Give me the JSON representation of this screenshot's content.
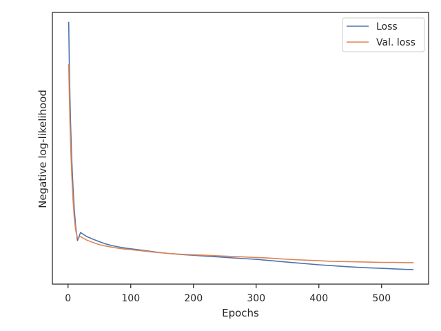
{
  "chart_data": {
    "type": "line",
    "xlabel": "Epochs",
    "ylabel": "Negative log-likelihood",
    "xlim": [
      -25,
      575
    ],
    "ylim": [
      0,
      1
    ],
    "x_ticks": [
      0,
      100,
      200,
      300,
      400,
      500
    ],
    "y_ticks_shown": false,
    "grid": false,
    "legend_position": "top-right",
    "series": [
      {
        "name": "Loss",
        "color": "#4c72b0",
        "x": [
          1,
          2,
          3,
          4,
          5,
          6,
          8,
          10,
          12,
          15,
          20,
          25,
          30,
          40,
          50,
          60,
          70,
          80,
          90,
          100,
          120,
          140,
          160,
          180,
          200,
          220,
          240,
          260,
          280,
          300,
          320,
          340,
          360,
          380,
          400,
          420,
          440,
          460,
          480,
          500,
          520,
          540,
          551
        ],
        "values": [
          0.965,
          0.81,
          0.69,
          0.595,
          0.52,
          0.455,
          0.355,
          0.275,
          0.215,
          0.16,
          0.19,
          0.182,
          0.175,
          0.165,
          0.156,
          0.148,
          0.142,
          0.137,
          0.133,
          0.13,
          0.124,
          0.118,
          0.113,
          0.109,
          0.106,
          0.103,
          0.1,
          0.097,
          0.094,
          0.091,
          0.087,
          0.083,
          0.079,
          0.075,
          0.071,
          0.068,
          0.065,
          0.062,
          0.06,
          0.058,
          0.056,
          0.054,
          0.053
        ]
      },
      {
        "name": "Val. loss",
        "color": "#dd8452",
        "x": [
          1,
          2,
          3,
          4,
          5,
          6,
          8,
          10,
          12,
          15,
          20,
          25,
          30,
          40,
          50,
          60,
          70,
          80,
          90,
          100,
          120,
          140,
          160,
          180,
          200,
          220,
          240,
          260,
          280,
          300,
          320,
          340,
          360,
          380,
          400,
          420,
          440,
          460,
          480,
          500,
          520,
          540,
          551
        ],
        "values": [
          0.81,
          0.7,
          0.6,
          0.52,
          0.455,
          0.4,
          0.31,
          0.245,
          0.2,
          0.17,
          0.175,
          0.168,
          0.162,
          0.153,
          0.145,
          0.14,
          0.136,
          0.132,
          0.129,
          0.127,
          0.122,
          0.117,
          0.113,
          0.11,
          0.108,
          0.106,
          0.104,
          0.102,
          0.1,
          0.098,
          0.096,
          0.093,
          0.09,
          0.088,
          0.086,
          0.084,
          0.083,
          0.082,
          0.081,
          0.08,
          0.08,
          0.079,
          0.079
        ]
      }
    ]
  }
}
